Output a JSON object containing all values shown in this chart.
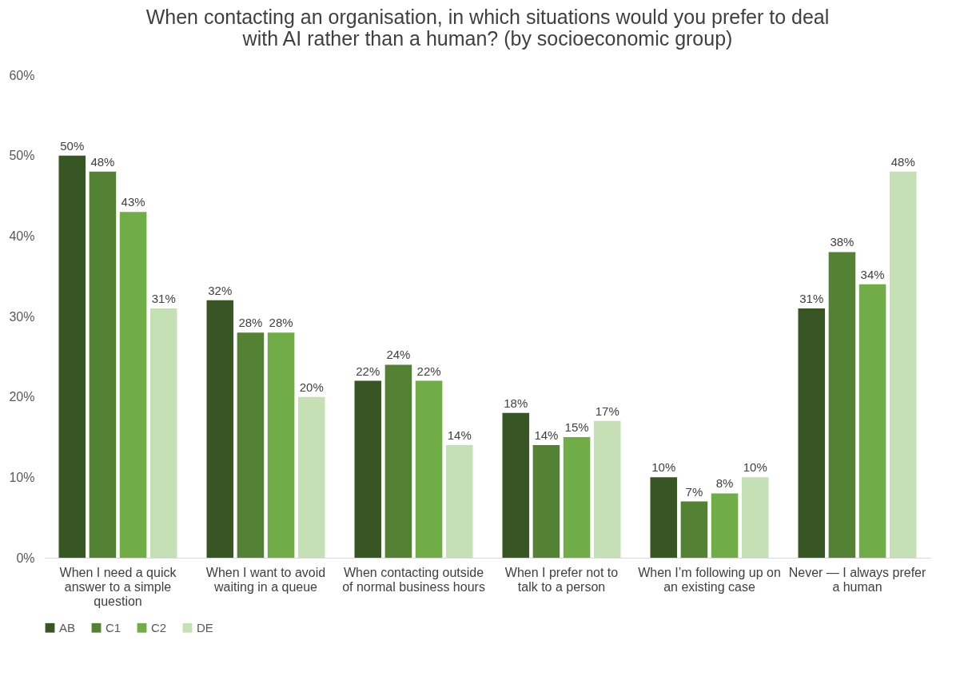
{
  "chart_data": {
    "type": "bar",
    "title": "When contacting an organisation, in which situations would you prefer to deal with AI rather than a human? (by socioeconomic group)",
    "categories": [
      "When I need a quick answer to a simple question",
      "When I want to avoid waiting in a queue",
      "When contacting outside of normal business hours",
      "When I prefer not to talk to a person",
      "When I’m following up on an existing case",
      "Never — I always prefer a human"
    ],
    "series": [
      {
        "name": "AB",
        "color": "#375623",
        "values": [
          50,
          32,
          22,
          18,
          10,
          31
        ],
        "value_labels": [
          "50%",
          "32%",
          "22%",
          "18%",
          "10%",
          "31%"
        ]
      },
      {
        "name": "C1",
        "color": "#548235",
        "values": [
          48,
          28,
          24,
          14,
          7,
          38
        ],
        "value_labels": [
          "48%",
          "28%",
          "24%",
          "14%",
          "7%",
          "38%"
        ]
      },
      {
        "name": "C2",
        "color": "#70ad47",
        "values": [
          43,
          28,
          22,
          15,
          8,
          34
        ],
        "value_labels": [
          "43%",
          "28%",
          "22%",
          "15%",
          "8%",
          "34%"
        ]
      },
      {
        "name": "DE",
        "color": "#c5e0b4",
        "values": [
          31,
          20,
          14,
          17,
          10,
          48
        ],
        "value_labels": [
          "31%",
          "20%",
          "14%",
          "17%",
          "10%",
          "48%"
        ]
      }
    ],
    "ylim": [
      0,
      60
    ],
    "yticks": [
      {
        "value": 0,
        "label": "0%"
      },
      {
        "value": 10,
        "label": "10%"
      },
      {
        "value": 20,
        "label": "20%"
      },
      {
        "value": 30,
        "label": "30%"
      },
      {
        "value": 40,
        "label": "40%"
      },
      {
        "value": 50,
        "label": "50%"
      },
      {
        "value": 60,
        "label": "60%"
      }
    ],
    "grid": false,
    "legend": "bottom"
  }
}
